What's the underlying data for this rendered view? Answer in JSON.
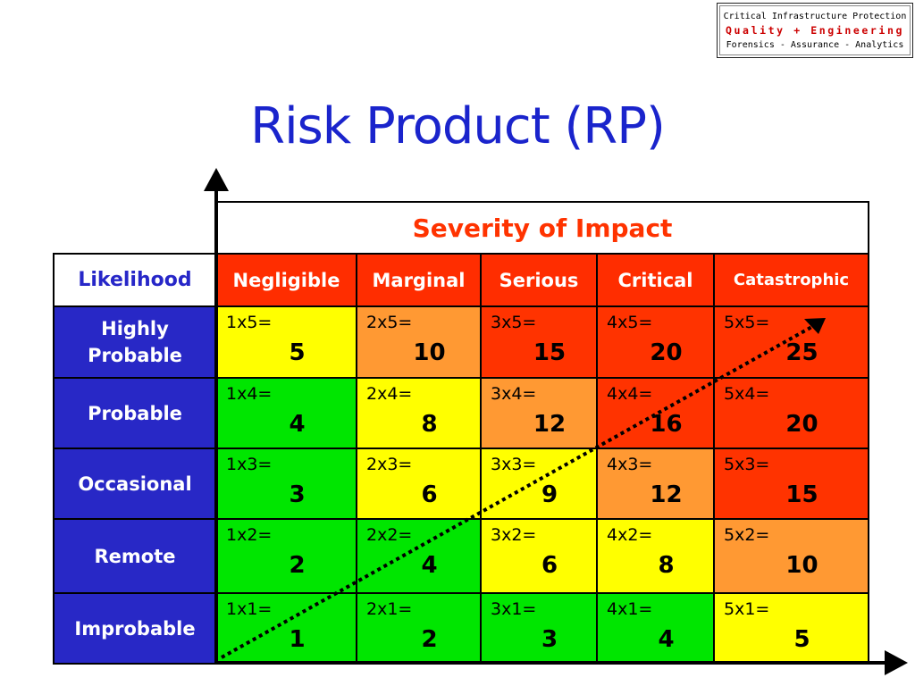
{
  "logo": {
    "line1": "Critical Infrastructure Protection",
    "line2": "Quality + Engineering",
    "line3": "Forensics - Assurance - Analytics"
  },
  "title": "Risk Product (RP)",
  "matrix": {
    "severity_header": "Severity of Impact",
    "likelihood_header": "Likelihood",
    "columns": [
      "Negligible",
      "Marginal",
      "Serious",
      "Critical",
      "Catastrophic"
    ],
    "rows": [
      {
        "label": "Highly\nProbable",
        "cells": [
          {
            "formula": "1x5=",
            "product": "5",
            "color": "#ffff00"
          },
          {
            "formula": "2x5=",
            "product": "10",
            "color": "#ff9933"
          },
          {
            "formula": "3x5=",
            "product": "15",
            "color": "#ff3300"
          },
          {
            "formula": "4x5=",
            "product": "20",
            "color": "#ff3300"
          },
          {
            "formula": "5x5=",
            "product": "25",
            "color": "#ff3300"
          }
        ]
      },
      {
        "label": "Probable",
        "cells": [
          {
            "formula": "1x4=",
            "product": "4",
            "color": "#00e600"
          },
          {
            "formula": "2x4=",
            "product": "8",
            "color": "#ffff00"
          },
          {
            "formula": "3x4=",
            "product": "12",
            "color": "#ff9933"
          },
          {
            "formula": "4x4=",
            "product": "16",
            "color": "#ff3300"
          },
          {
            "formula": "5x4=",
            "product": "20",
            "color": "#ff3300"
          }
        ]
      },
      {
        "label": "Occasional",
        "cells": [
          {
            "formula": "1x3=",
            "product": "3",
            "color": "#00e600"
          },
          {
            "formula": "2x3=",
            "product": "6",
            "color": "#ffff00"
          },
          {
            "formula": "3x3=",
            "product": "9",
            "color": "#ffff00"
          },
          {
            "formula": "4x3=",
            "product": "12",
            "color": "#ff9933"
          },
          {
            "formula": "5x3=",
            "product": "15",
            "color": "#ff3300"
          }
        ]
      },
      {
        "label": "Remote",
        "cells": [
          {
            "formula": "1x2=",
            "product": "2",
            "color": "#00e600"
          },
          {
            "formula": "2x2=",
            "product": "4",
            "color": "#00e600"
          },
          {
            "formula": "3x2=",
            "product": "6",
            "color": "#ffff00"
          },
          {
            "formula": "4x2=",
            "product": "8",
            "color": "#ffff00"
          },
          {
            "formula": "5x2=",
            "product": "10",
            "color": "#ff9933"
          }
        ]
      },
      {
        "label": "Improbable",
        "cells": [
          {
            "formula": "1x1=",
            "product": "1",
            "color": "#00e600"
          },
          {
            "formula": "2x1=",
            "product": "2",
            "color": "#00e600"
          },
          {
            "formula": "3x1=",
            "product": "3",
            "color": "#00e600"
          },
          {
            "formula": "4x1=",
            "product": "4",
            "color": "#00e600"
          },
          {
            "formula": "5x1=",
            "product": "5",
            "color": "#ffff00"
          }
        ]
      }
    ]
  },
  "colors": {
    "title": "#1a24cc",
    "severity_text": "#ff3300",
    "row_header_bg": "#2828c6",
    "column_header_bg": "#ff2d00"
  }
}
